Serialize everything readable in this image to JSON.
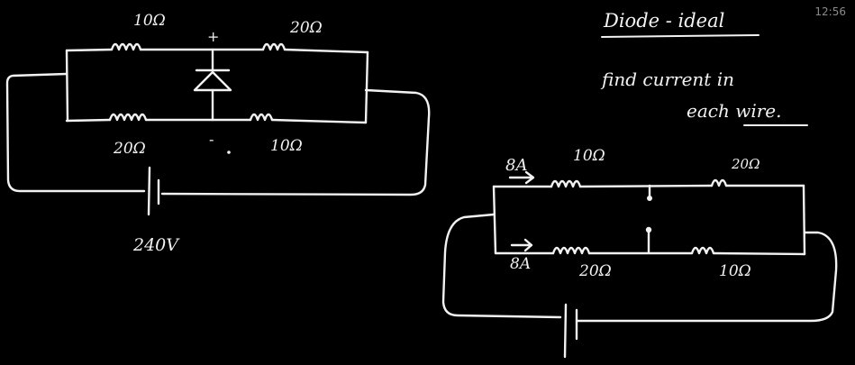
{
  "clock": "12:56",
  "notes": {
    "title": "Diode - ideal",
    "line1": "find current in",
    "line2": "each wire."
  },
  "circuit_1": {
    "r_top_left": "10Ω",
    "r_top_right": "20Ω",
    "r_bottom_left": "20Ω",
    "r_bottom_right": "10Ω",
    "node_top_mark": "+",
    "node_bottom_mark": "-",
    "battery": "240V"
  },
  "circuit_2": {
    "current_top": "8A",
    "current_bottom": "8A",
    "r_top_left": "10Ω",
    "r_top_right": "20Ω",
    "r_bottom_left": "20Ω",
    "r_bottom_right": "10Ω"
  },
  "colors": {
    "background": "#000000",
    "ink": "#f2f2f2"
  }
}
